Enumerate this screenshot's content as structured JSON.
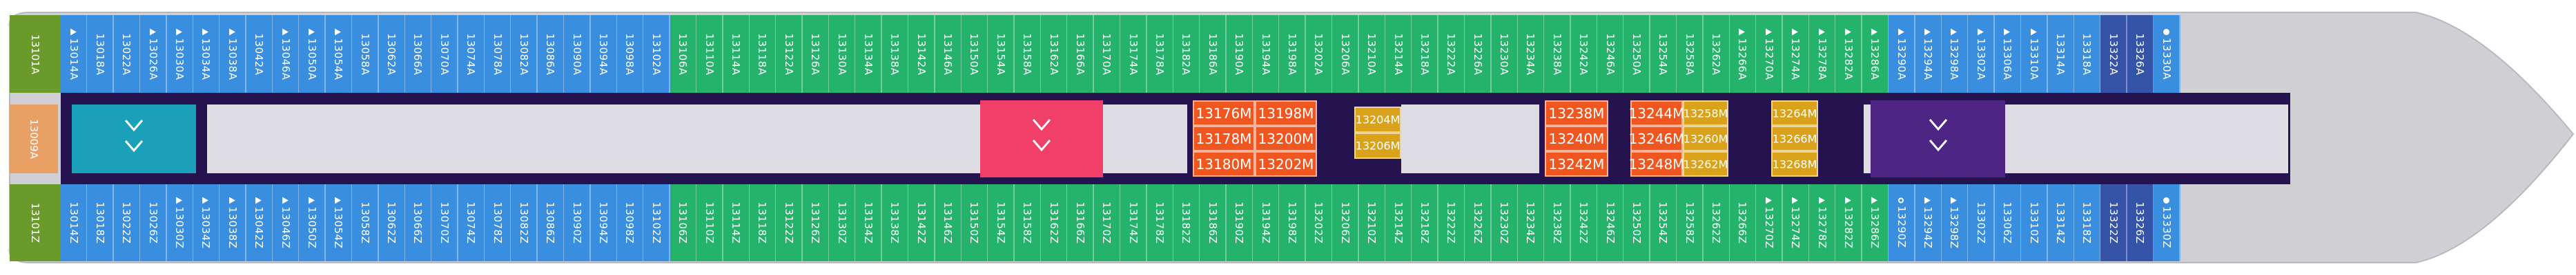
{
  "colors": {
    "hull": "#cfcfd4",
    "corridor": "#dedde3",
    "frame": "#24134f",
    "aft_green": "#6a9a2a",
    "blue": "#3a8ee0",
    "green": "#25b26b",
    "teal": "#1aa0b8",
    "red": "#f0406a",
    "purple": "#4e2585",
    "orange": "#f0561f",
    "gold": "#d9a21a",
    "yellow_light": "#e8a064",
    "navy": "#3554a8",
    "white": "#ffffff"
  },
  "aft_labels": {
    "top": "13101A",
    "mid": "13009A",
    "bottom": "13101Z"
  },
  "top_cabins": [
    {
      "label": "13014A",
      "color": "blue",
      "icon": "tri"
    },
    {
      "label": "13018A",
      "color": "blue",
      "icon": ""
    },
    {
      "label": "13022A",
      "color": "blue",
      "icon": ""
    },
    {
      "label": "13026A",
      "color": "blue",
      "icon": "tri"
    },
    {
      "label": "13030A",
      "color": "blue",
      "icon": "tri"
    },
    {
      "label": "13034A",
      "color": "blue",
      "icon": "tri"
    },
    {
      "label": "13038A",
      "color": "blue",
      "icon": "tri"
    },
    {
      "label": "13042A",
      "color": "blue",
      "icon": ""
    },
    {
      "label": "13046A",
      "color": "blue",
      "icon": "tri"
    },
    {
      "label": "13050A",
      "color": "blue",
      "icon": "tri"
    },
    {
      "label": "13054A",
      "color": "blue",
      "icon": "tri"
    },
    {
      "label": "13058A",
      "color": "blue",
      "icon": ""
    },
    {
      "label": "13062A",
      "color": "blue",
      "icon": ""
    },
    {
      "label": "13066A",
      "color": "blue",
      "icon": ""
    },
    {
      "label": "13070A",
      "color": "blue",
      "icon": ""
    },
    {
      "label": "13074A",
      "color": "blue",
      "icon": ""
    },
    {
      "label": "13078A",
      "color": "blue",
      "icon": ""
    },
    {
      "label": "13082A",
      "color": "blue",
      "icon": ""
    },
    {
      "label": "13086A",
      "color": "blue",
      "icon": ""
    },
    {
      "label": "13090A",
      "color": "blue",
      "icon": ""
    },
    {
      "label": "13094A",
      "color": "blue",
      "icon": ""
    },
    {
      "label": "13098A",
      "color": "blue",
      "icon": ""
    },
    {
      "label": "13102A",
      "color": "blue",
      "icon": ""
    },
    {
      "label": "13106A",
      "color": "green",
      "icon": ""
    },
    {
      "label": "13110A",
      "color": "green",
      "icon": ""
    },
    {
      "label": "13114A",
      "color": "green",
      "icon": ""
    },
    {
      "label": "13118A",
      "color": "green",
      "icon": ""
    },
    {
      "label": "13122A",
      "color": "green",
      "icon": ""
    },
    {
      "label": "13126A",
      "color": "green",
      "icon": ""
    },
    {
      "label": "13130A",
      "color": "green",
      "icon": ""
    },
    {
      "label": "13134A",
      "color": "green",
      "icon": ""
    },
    {
      "label": "13138A",
      "color": "green",
      "icon": ""
    },
    {
      "label": "13142A",
      "color": "green",
      "icon": ""
    },
    {
      "label": "13146A",
      "color": "green",
      "icon": ""
    },
    {
      "label": "13150A",
      "color": "green",
      "icon": ""
    },
    {
      "label": "13154A",
      "color": "green",
      "icon": ""
    },
    {
      "label": "13158A",
      "color": "green",
      "icon": ""
    },
    {
      "label": "13162A",
      "color": "green",
      "icon": ""
    },
    {
      "label": "13166A",
      "color": "green",
      "icon": ""
    },
    {
      "label": "13170A",
      "color": "green",
      "icon": ""
    },
    {
      "label": "13174A",
      "color": "green",
      "icon": ""
    },
    {
      "label": "13178A",
      "color": "green",
      "icon": ""
    },
    {
      "label": "13182A",
      "color": "green",
      "icon": ""
    },
    {
      "label": "13186A",
      "color": "green",
      "icon": ""
    },
    {
      "label": "13190A",
      "color": "green",
      "icon": ""
    },
    {
      "label": "13194A",
      "color": "green",
      "icon": ""
    },
    {
      "label": "13198A",
      "color": "green",
      "icon": ""
    },
    {
      "label": "13202A",
      "color": "green",
      "icon": ""
    },
    {
      "label": "13206A",
      "color": "green",
      "icon": ""
    },
    {
      "label": "13210A",
      "color": "green",
      "icon": ""
    },
    {
      "label": "13214A",
      "color": "green",
      "icon": ""
    },
    {
      "label": "13218A",
      "color": "green",
      "icon": ""
    },
    {
      "label": "13222A",
      "color": "green",
      "icon": ""
    },
    {
      "label": "13226A",
      "color": "green",
      "icon": ""
    },
    {
      "label": "13230A",
      "color": "green",
      "icon": ""
    },
    {
      "label": "13234A",
      "color": "green",
      "icon": ""
    },
    {
      "label": "13238A",
      "color": "green",
      "icon": ""
    },
    {
      "label": "13242A",
      "color": "green",
      "icon": ""
    },
    {
      "label": "13246A",
      "color": "green",
      "icon": ""
    },
    {
      "label": "13250A",
      "color": "green",
      "icon": ""
    },
    {
      "label": "13254A",
      "color": "green",
      "icon": ""
    },
    {
      "label": "13258A",
      "color": "green",
      "icon": ""
    },
    {
      "label": "13262A",
      "color": "green",
      "icon": ""
    },
    {
      "label": "13266A",
      "color": "green",
      "icon": "tri"
    },
    {
      "label": "13270A",
      "color": "green",
      "icon": "tri"
    },
    {
      "label": "13274A",
      "color": "green",
      "icon": "tri"
    },
    {
      "label": "13278A",
      "color": "green",
      "icon": "tri"
    },
    {
      "label": "13282A",
      "color": "green",
      "icon": "tri"
    },
    {
      "label": "13286A",
      "color": "green",
      "icon": "tri"
    },
    {
      "label": "13290A",
      "color": "blue",
      "icon": "tri"
    },
    {
      "label": "13294A",
      "color": "blue",
      "icon": "tri"
    },
    {
      "label": "13298A",
      "color": "blue",
      "icon": "tri"
    },
    {
      "label": "13302A",
      "color": "blue",
      "icon": "tri"
    },
    {
      "label": "13306A",
      "color": "blue",
      "icon": "tri"
    },
    {
      "label": "13310A",
      "color": "blue",
      "icon": "tri"
    },
    {
      "label": "13314A",
      "color": "blue",
      "icon": ""
    },
    {
      "label": "13318A",
      "color": "blue",
      "icon": ""
    },
    {
      "label": "13322A",
      "color": "navy",
      "icon": ""
    },
    {
      "label": "13326A",
      "color": "navy",
      "icon": ""
    },
    {
      "label": "13330A",
      "color": "blue",
      "icon": "dot"
    }
  ],
  "bottom_cabins": [
    {
      "label": "13014Z",
      "color": "blue",
      "icon": ""
    },
    {
      "label": "13018Z",
      "color": "blue",
      "icon": ""
    },
    {
      "label": "13022Z",
      "color": "blue",
      "icon": ""
    },
    {
      "label": "13026Z",
      "color": "blue",
      "icon": ""
    },
    {
      "label": "13030Z",
      "color": "blue",
      "icon": "tri"
    },
    {
      "label": "13034Z",
      "color": "blue",
      "icon": "tri"
    },
    {
      "label": "13038Z",
      "color": "blue",
      "icon": "tri"
    },
    {
      "label": "13042Z",
      "color": "blue",
      "icon": "tri"
    },
    {
      "label": "13046Z",
      "color": "blue",
      "icon": "tri"
    },
    {
      "label": "13050Z",
      "color": "blue",
      "icon": "tri"
    },
    {
      "label": "13054Z",
      "color": "blue",
      "icon": "tri"
    },
    {
      "label": "13058Z",
      "color": "blue",
      "icon": ""
    },
    {
      "label": "13062Z",
      "color": "blue",
      "icon": ""
    },
    {
      "label": "13066Z",
      "color": "blue",
      "icon": ""
    },
    {
      "label": "13070Z",
      "color": "blue",
      "icon": ""
    },
    {
      "label": "13074Z",
      "color": "blue",
      "icon": ""
    },
    {
      "label": "13078Z",
      "color": "blue",
      "icon": ""
    },
    {
      "label": "13082Z",
      "color": "blue",
      "icon": ""
    },
    {
      "label": "13086Z",
      "color": "blue",
      "icon": ""
    },
    {
      "label": "13090Z",
      "color": "blue",
      "icon": ""
    },
    {
      "label": "13094Z",
      "color": "blue",
      "icon": ""
    },
    {
      "label": "13098Z",
      "color": "blue",
      "icon": ""
    },
    {
      "label": "13102Z",
      "color": "blue",
      "icon": ""
    },
    {
      "label": "13106Z",
      "color": "green",
      "icon": ""
    },
    {
      "label": "13110Z",
      "color": "green",
      "icon": ""
    },
    {
      "label": "13114Z",
      "color": "green",
      "icon": ""
    },
    {
      "label": "13118Z",
      "color": "green",
      "icon": ""
    },
    {
      "label": "13122Z",
      "color": "green",
      "icon": ""
    },
    {
      "label": "13126Z",
      "color": "green",
      "icon": ""
    },
    {
      "label": "13130Z",
      "color": "green",
      "icon": ""
    },
    {
      "label": "13134Z",
      "color": "green",
      "icon": ""
    },
    {
      "label": "13138Z",
      "color": "green",
      "icon": ""
    },
    {
      "label": "13142Z",
      "color": "green",
      "icon": ""
    },
    {
      "label": "13146Z",
      "color": "green",
      "icon": ""
    },
    {
      "label": "13150Z",
      "color": "green",
      "icon": ""
    },
    {
      "label": "13154Z",
      "color": "green",
      "icon": ""
    },
    {
      "label": "13158Z",
      "color": "green",
      "icon": ""
    },
    {
      "label": "13162Z",
      "color": "green",
      "icon": ""
    },
    {
      "label": "13166Z",
      "color": "green",
      "icon": ""
    },
    {
      "label": "13170Z",
      "color": "green",
      "icon": ""
    },
    {
      "label": "13174Z",
      "color": "green",
      "icon": ""
    },
    {
      "label": "13178Z",
      "color": "green",
      "icon": ""
    },
    {
      "label": "13182Z",
      "color": "green",
      "icon": ""
    },
    {
      "label": "13186Z",
      "color": "green",
      "icon": ""
    },
    {
      "label": "13190Z",
      "color": "green",
      "icon": ""
    },
    {
      "label": "13194Z",
      "color": "green",
      "icon": ""
    },
    {
      "label": "13198Z",
      "color": "green",
      "icon": ""
    },
    {
      "label": "13202Z",
      "color": "green",
      "icon": ""
    },
    {
      "label": "13206Z",
      "color": "green",
      "icon": ""
    },
    {
      "label": "13210Z",
      "color": "green",
      "icon": ""
    },
    {
      "label": "13214Z",
      "color": "green",
      "icon": ""
    },
    {
      "label": "13218Z",
      "color": "green",
      "icon": ""
    },
    {
      "label": "13222Z",
      "color": "green",
      "icon": ""
    },
    {
      "label": "13226Z",
      "color": "green",
      "icon": ""
    },
    {
      "label": "13230Z",
      "color": "green",
      "icon": ""
    },
    {
      "label": "13234Z",
      "color": "green",
      "icon": ""
    },
    {
      "label": "13238Z",
      "color": "green",
      "icon": ""
    },
    {
      "label": "13242Z",
      "color": "green",
      "icon": ""
    },
    {
      "label": "13246Z",
      "color": "green",
      "icon": ""
    },
    {
      "label": "13250Z",
      "color": "green",
      "icon": ""
    },
    {
      "label": "13254Z",
      "color": "green",
      "icon": ""
    },
    {
      "label": "13258Z",
      "color": "green",
      "icon": ""
    },
    {
      "label": "13262Z",
      "color": "green",
      "icon": ""
    },
    {
      "label": "13266Z",
      "color": "green",
      "icon": ""
    },
    {
      "label": "13270Z",
      "color": "green",
      "icon": "tri"
    },
    {
      "label": "13274Z",
      "color": "green",
      "icon": "tri"
    },
    {
      "label": "13278Z",
      "color": "green",
      "icon": "tri"
    },
    {
      "label": "13282Z",
      "color": "green",
      "icon": "tri"
    },
    {
      "label": "13286Z",
      "color": "green",
      "icon": "tri"
    },
    {
      "label": "13290Z",
      "color": "blue",
      "icon": "ring"
    },
    {
      "label": "13294Z",
      "color": "blue",
      "icon": "tri"
    },
    {
      "label": "13298Z",
      "color": "blue",
      "icon": "tri"
    },
    {
      "label": "13302Z",
      "color": "blue",
      "icon": ""
    },
    {
      "label": "13306Z",
      "color": "blue",
      "icon": ""
    },
    {
      "label": "13310Z",
      "color": "blue",
      "icon": ""
    },
    {
      "label": "13314Z",
      "color": "blue",
      "icon": ""
    },
    {
      "label": "13318Z",
      "color": "blue",
      "icon": ""
    },
    {
      "label": "13322Z",
      "color": "navy",
      "icon": ""
    },
    {
      "label": "13326Z",
      "color": "navy",
      "icon": ""
    },
    {
      "label": "13330Z",
      "color": "blue",
      "icon": "dot"
    }
  ],
  "inside_orange_a": [
    [
      "13176M",
      "13198M"
    ],
    [
      "13178M",
      "13200M"
    ],
    [
      "13180M",
      "13202M"
    ]
  ],
  "inside_gold_a": [
    "13204M",
    "13206M"
  ],
  "inside_orange_b": [
    [
      "13238M"
    ],
    [
      "13240M"
    ],
    [
      "13242M"
    ]
  ],
  "inside_orange_c": [
    [
      "13244M"
    ],
    [
      "13246M"
    ],
    [
      "13248M"
    ]
  ],
  "inside_gold_b": [
    "13258M",
    "13260M",
    "13262M"
  ],
  "inside_gold_c": [
    "13264M",
    "13266M",
    "13268M"
  ]
}
